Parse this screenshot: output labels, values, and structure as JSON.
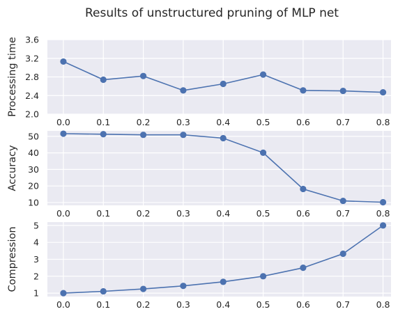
{
  "figure": {
    "title": "Results of unstructured pruning of MLP net"
  },
  "colors": {
    "panel_bg": "#eaeaf2",
    "grid": "#ffffff",
    "line": "#4c72b0",
    "text": "#262626"
  },
  "chart_data": [
    {
      "type": "line",
      "title": "",
      "xlabel": "",
      "ylabel": "Processing time",
      "x": [
        0.0,
        0.1,
        0.2,
        0.3,
        0.4,
        0.5,
        0.6,
        0.7,
        0.8
      ],
      "x_tick_labels": [
        "0.0",
        "0.1",
        "0.2",
        "0.3",
        "0.4",
        "0.5",
        "0.6",
        "0.7",
        "0.8"
      ],
      "series": [
        {
          "values": [
            3.13,
            2.74,
            2.82,
            2.51,
            2.65,
            2.85,
            2.51,
            2.5,
            2.47
          ]
        }
      ],
      "xlim": [
        -0.04,
        0.82
      ],
      "ylim": [
        2.0,
        3.6
      ],
      "y_ticks": [
        2.0,
        2.4,
        2.8,
        3.2,
        3.6
      ],
      "y_tick_labels": [
        "2.0",
        "2.4",
        "2.8",
        "3.2",
        "3.6"
      ],
      "grid": true,
      "markers": "circle"
    },
    {
      "type": "line",
      "title": "",
      "xlabel": "",
      "ylabel": "Accuracy",
      "x": [
        0.0,
        0.1,
        0.2,
        0.3,
        0.4,
        0.5,
        0.6,
        0.7,
        0.8
      ],
      "x_tick_labels": [
        "0.0",
        "0.1",
        "0.2",
        "0.3",
        "0.4",
        "0.5",
        "0.6",
        "0.7",
        "0.8"
      ],
      "series": [
        {
          "values": [
            51.6,
            51.3,
            50.9,
            50.9,
            48.9,
            40.1,
            18.2,
            11.0,
            10.2
          ]
        }
      ],
      "xlim": [
        -0.04,
        0.82
      ],
      "ylim": [
        8.3,
        53.3
      ],
      "y_ticks": [
        10,
        20,
        30,
        40,
        50
      ],
      "y_tick_labels": [
        "10",
        "20",
        "30",
        "40",
        "50"
      ],
      "grid": true,
      "markers": "circle"
    },
    {
      "type": "line",
      "title": "",
      "xlabel": "",
      "ylabel": "Compression",
      "x": [
        0.0,
        0.1,
        0.2,
        0.3,
        0.4,
        0.5,
        0.6,
        0.7,
        0.8
      ],
      "x_tick_labels": [
        "0.0",
        "0.1",
        "0.2",
        "0.3",
        "0.4",
        "0.5",
        "0.6",
        "0.7",
        "0.8"
      ],
      "series": [
        {
          "values": [
            1.0,
            1.11,
            1.25,
            1.43,
            1.67,
            2.0,
            2.5,
            3.33,
            5.0
          ]
        }
      ],
      "xlim": [
        -0.04,
        0.82
      ],
      "ylim": [
        0.8,
        5.2
      ],
      "y_ticks": [
        1,
        2,
        3,
        4,
        5
      ],
      "y_tick_labels": [
        "1",
        "2",
        "3",
        "4",
        "5"
      ],
      "grid": true,
      "markers": "circle"
    }
  ]
}
